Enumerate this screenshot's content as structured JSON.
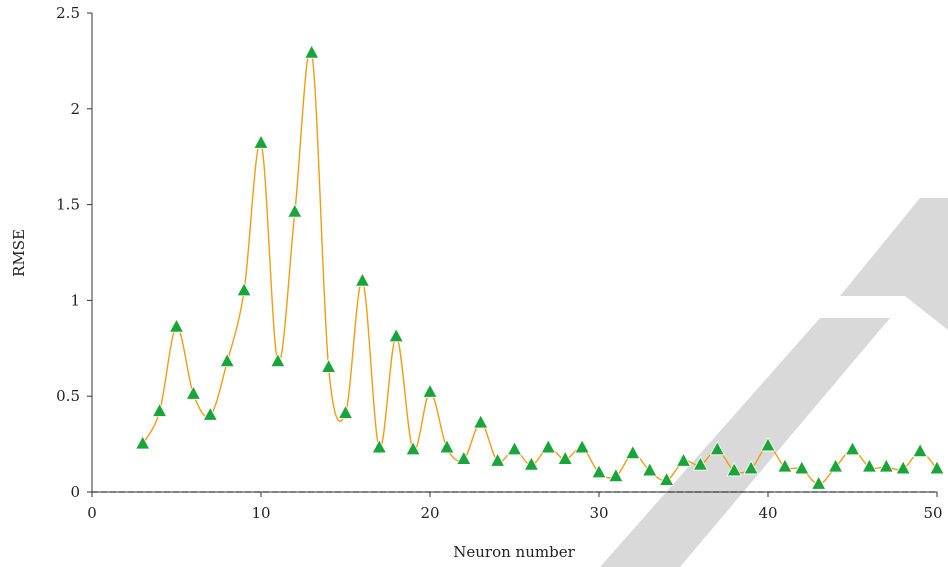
{
  "chart_data": {
    "type": "line",
    "xlabel": "Neuron number",
    "ylabel": "RMSE",
    "xlim": [
      0,
      50
    ],
    "ylim": [
      0,
      2.5
    ],
    "xticks": [
      "0",
      "10",
      "20",
      "30",
      "40",
      "50"
    ],
    "yticks": [
      "0",
      "0.5",
      "1",
      "1.5",
      "2",
      "2.5"
    ],
    "grid": false,
    "legend": "none",
    "line_color": "#f39c12",
    "marker_color": "#1aa53a",
    "marker_shape": "triangle",
    "baseline": "dashed line at y = 0",
    "series": [
      {
        "x": [
          3,
          4,
          5,
          6,
          7,
          8,
          9,
          10,
          11,
          12,
          13,
          14,
          15,
          16,
          17,
          18,
          19,
          20,
          21,
          22,
          23,
          24,
          25,
          26,
          27,
          28,
          29,
          30,
          31,
          32,
          33,
          34,
          35,
          36,
          37,
          38,
          39,
          40,
          41,
          42,
          43,
          44,
          45,
          46,
          47,
          48,
          49,
          50
        ],
        "values": [
          0.25,
          0.42,
          0.86,
          0.51,
          0.4,
          0.68,
          1.05,
          1.82,
          0.68,
          1.46,
          2.29,
          0.65,
          0.41,
          1.1,
          0.23,
          0.81,
          0.22,
          0.52,
          0.23,
          0.17,
          0.36,
          0.16,
          0.22,
          0.14,
          0.23,
          0.17,
          0.23,
          0.1,
          0.08,
          0.2,
          0.11,
          0.06,
          0.16,
          0.14,
          0.22,
          0.11,
          0.12,
          0.24,
          0.13,
          0.12,
          0.04,
          0.13,
          0.22,
          0.13,
          0.13,
          0.12,
          0.21,
          0.12
        ]
      }
    ]
  }
}
